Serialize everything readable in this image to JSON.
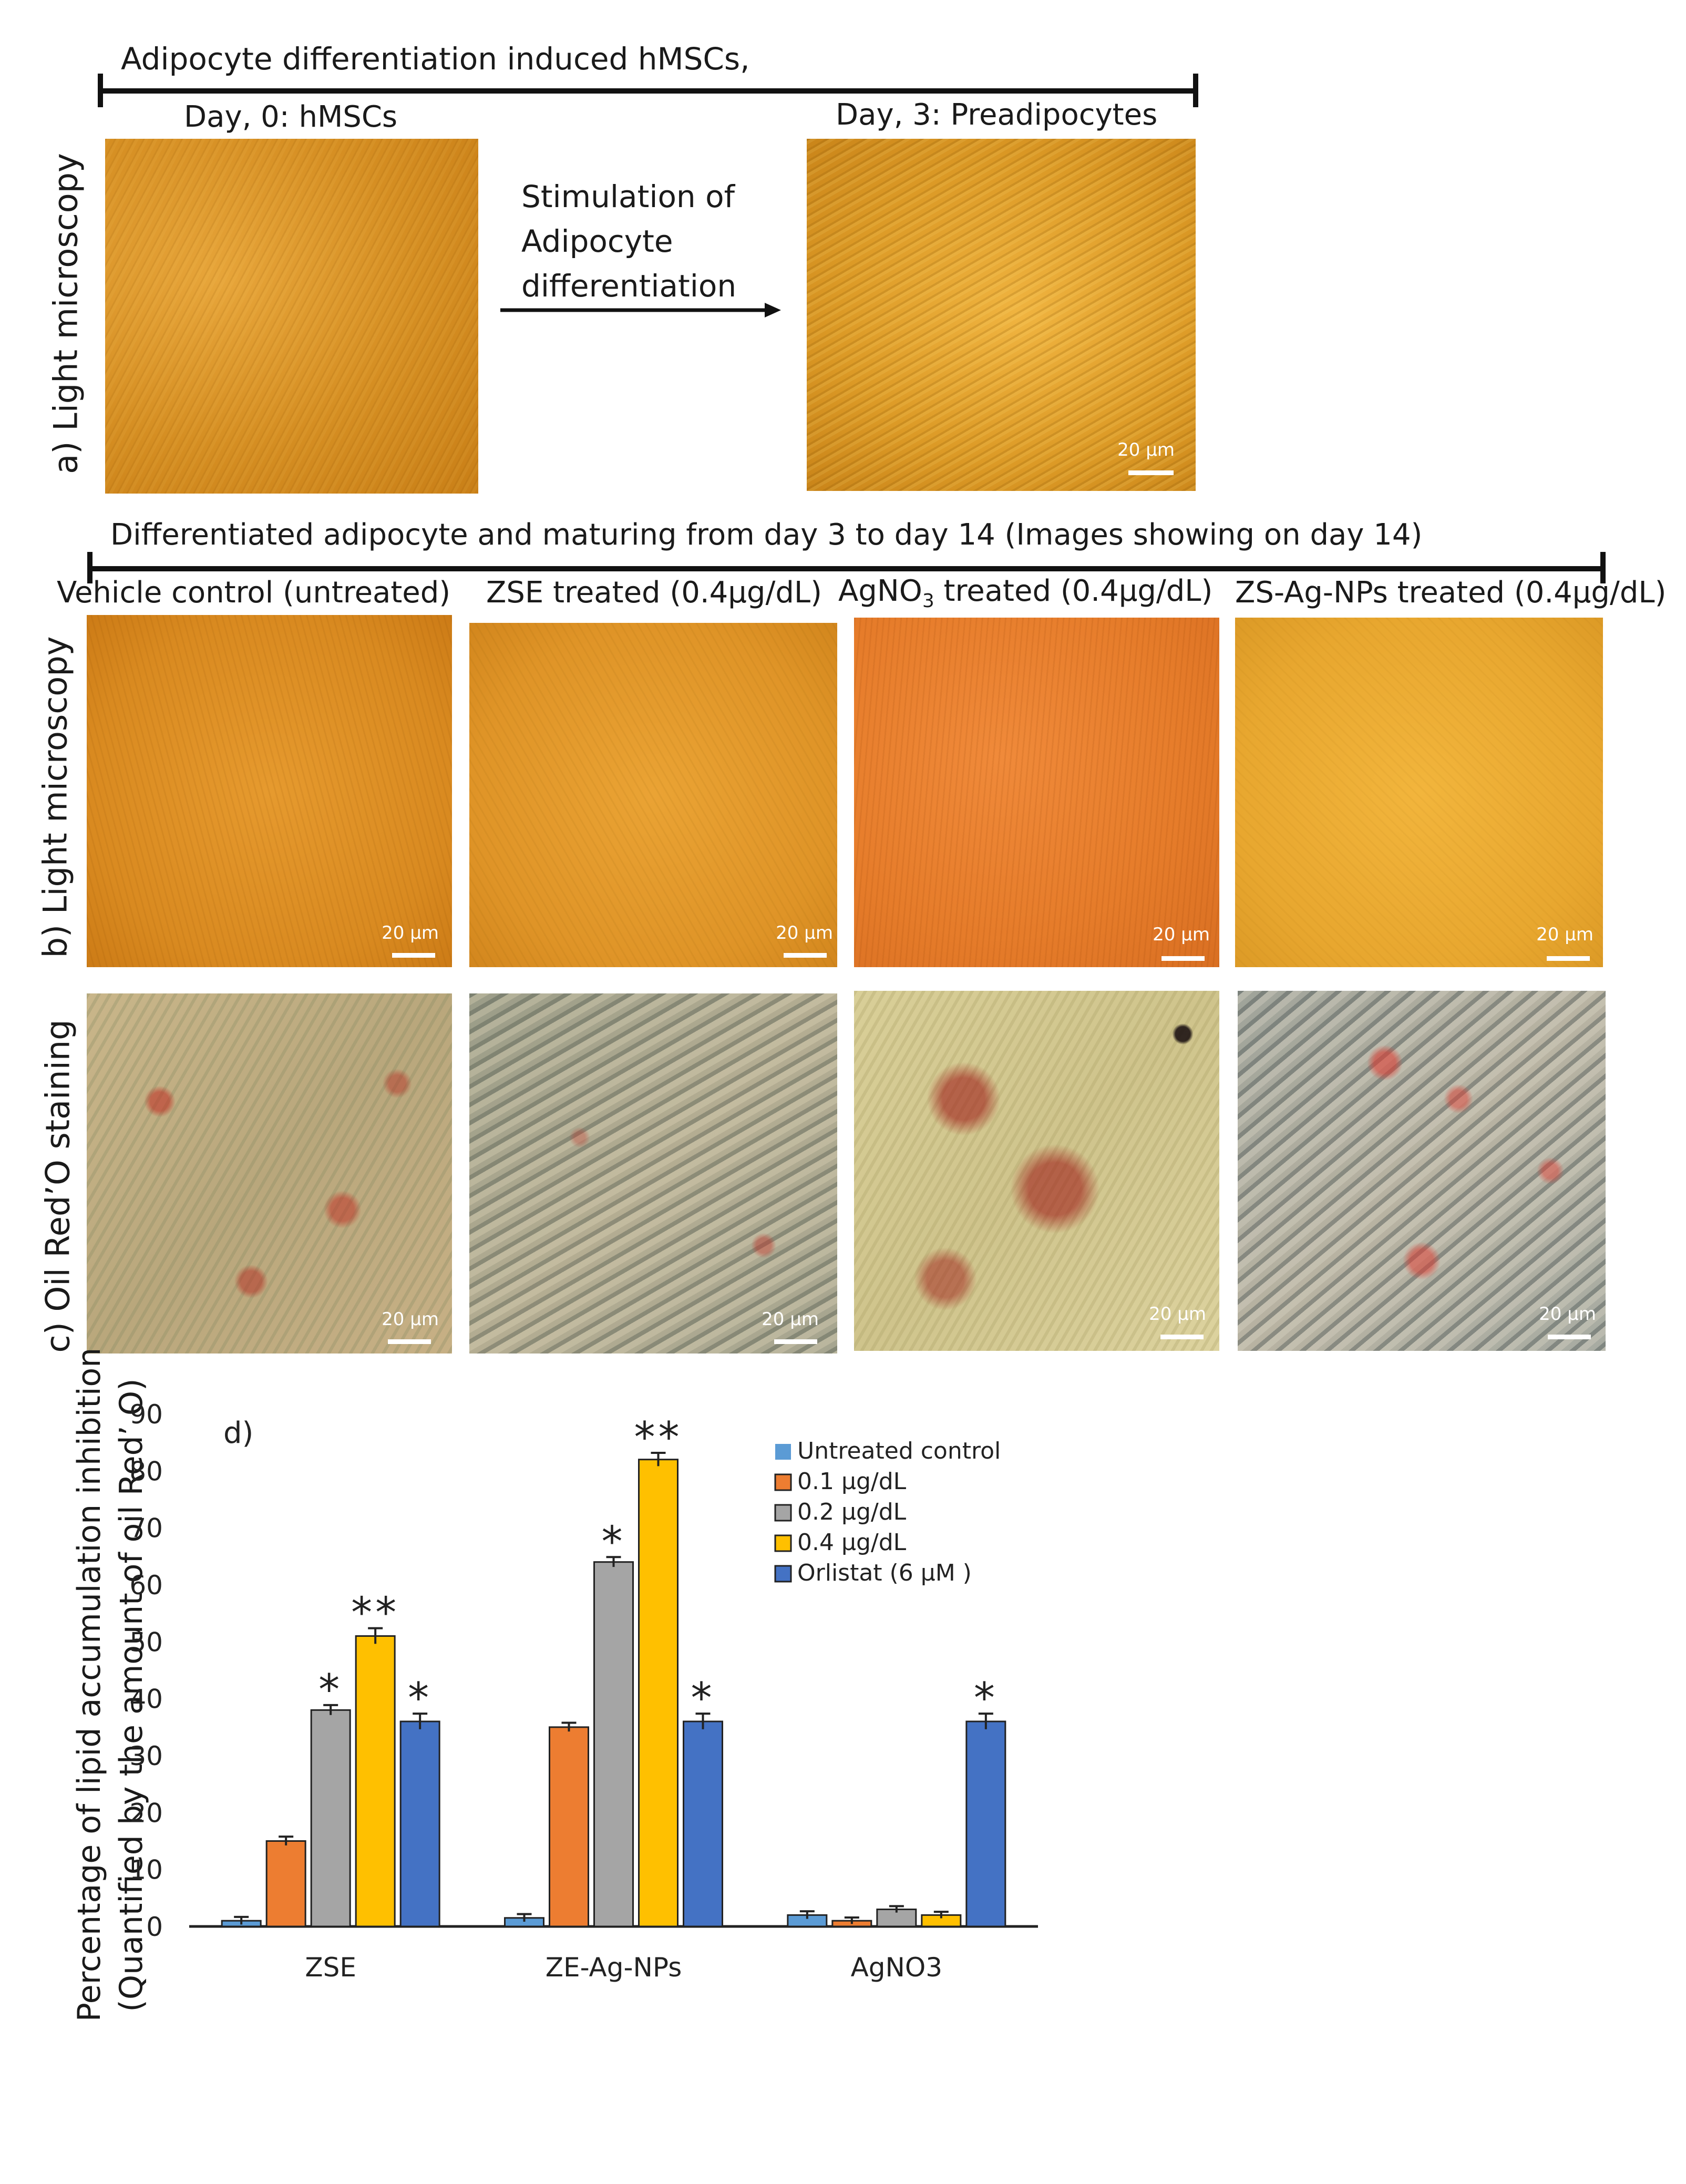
{
  "header": {
    "top_title": "Adipocyte differentiation induced hMSCs,",
    "day0_label": "Day, 0: hMSCs",
    "day3_label": "Day, 3: Preadipocytes",
    "stim_line1": "Stimulation of",
    "stim_line2": "Adipocyte",
    "stim_line3": "differentiation",
    "mid_title": "Differentiated adipocyte and maturing from day 3 to day 14 (Images showing on day 14)",
    "col1": "Vehicle control (untreated)",
    "col2": "ZSE treated (0.4μg/dL)",
    "col3_prefix": "AgNO",
    "col3_sub": "3",
    "col3_suffix": " treated (0.4μg/dL)",
    "col4": "ZS-Ag-NPs treated (0.4μg/dL)"
  },
  "row_labels": {
    "a": "a) Light microscopy",
    "b": "b) Light microscopy",
    "c": "c) Oil Red’O staining"
  },
  "scale_bar_text": "20 μm",
  "chart_data": {
    "type": "bar",
    "panel_label": "d)",
    "ylabel_line1": "Percentage of lipid accumulation inhibition",
    "ylabel_line2": "(Quantified by the amount of oil Red’ O)",
    "ylim": [
      0,
      90
    ],
    "yticks": [
      0,
      10,
      20,
      30,
      40,
      50,
      60,
      70,
      80,
      90
    ],
    "categories": [
      "ZSE",
      "ZE-Ag-NPs",
      "AgNO3"
    ],
    "legend_position": "top-right",
    "series": [
      {
        "name": "Untreated control",
        "color": "#5b9bd5",
        "values": [
          1,
          1.5,
          2
        ],
        "errors": [
          0.3,
          0.3,
          0.3
        ],
        "marks": [
          "",
          "",
          ""
        ]
      },
      {
        "name": "0.1 μg/dL",
        "color": "#ed7d31",
        "values": [
          15,
          35,
          1
        ],
        "errors": [
          0.4,
          0.4,
          0.2
        ],
        "marks": [
          "",
          "",
          ""
        ]
      },
      {
        "name": "0.2 μg/dL",
        "color": "#a5a5a5",
        "values": [
          38,
          64,
          3
        ],
        "errors": [
          0.5,
          0.5,
          0.2
        ],
        "marks": [
          "*",
          "*",
          ""
        ]
      },
      {
        "name": "0.4 μg/dL",
        "color": "#ffc000",
        "values": [
          51,
          82,
          2
        ],
        "errors": [
          1.0,
          0.8,
          0.2
        ],
        "marks": [
          "**",
          "**",
          ""
        ]
      },
      {
        "name": "Orlistat (6 μM )",
        "color": "#4472c4",
        "values": [
          36,
          36,
          36
        ],
        "errors": [
          1.0,
          1.0,
          1.0
        ],
        "marks": [
          "*",
          "*",
          "*"
        ]
      }
    ]
  }
}
